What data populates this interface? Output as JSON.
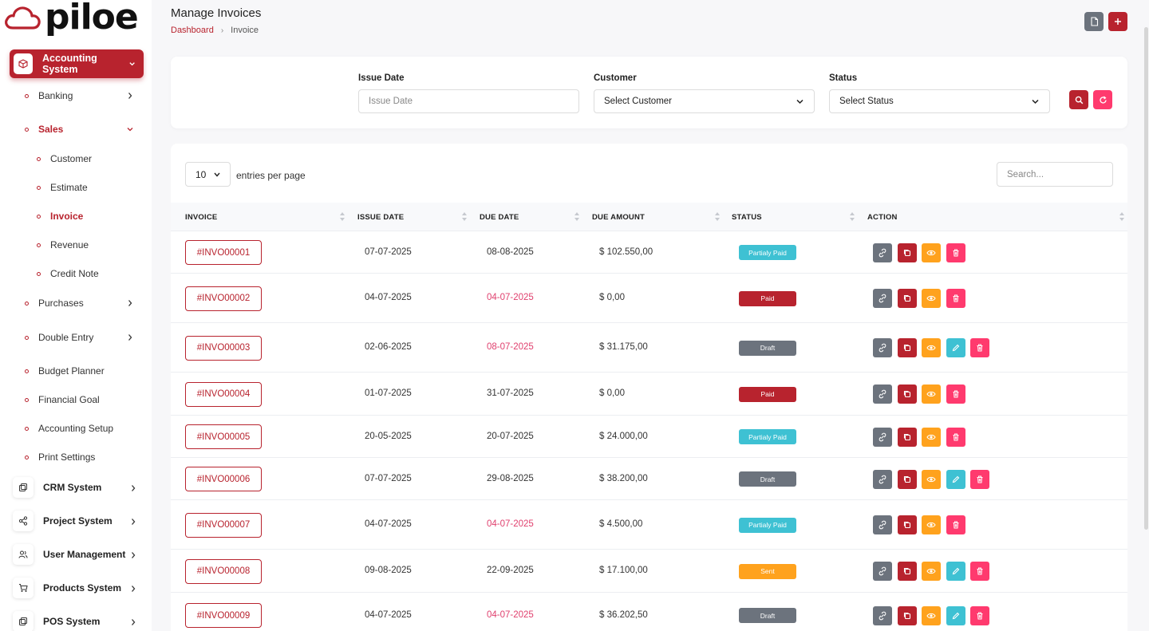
{
  "brand": {
    "name": "piloe",
    "accent": "#b8232e"
  },
  "sidebar": {
    "active_system": "Accounting System",
    "accounting_items": [
      {
        "label": "Banking",
        "expandable": true
      },
      {
        "label": "Sales",
        "expandable": true,
        "expanded": true,
        "active": true
      },
      {
        "label": "Customer",
        "sub": true
      },
      {
        "label": "Estimate",
        "sub": true
      },
      {
        "label": "Invoice",
        "sub": true,
        "active": true
      },
      {
        "label": "Revenue",
        "sub": true
      },
      {
        "label": "Credit Note",
        "sub": true
      },
      {
        "label": "Purchases",
        "expandable": true
      },
      {
        "label": "Double Entry",
        "expandable": true
      },
      {
        "label": "Budget Planner"
      },
      {
        "label": "Financial Goal"
      },
      {
        "label": "Accounting Setup"
      },
      {
        "label": "Print Settings"
      }
    ],
    "systems": [
      {
        "label": "CRM System",
        "icon": "crm-icon"
      },
      {
        "label": "Project System",
        "icon": "share-nodes-icon"
      },
      {
        "label": "User Management",
        "icon": "users-icon"
      },
      {
        "label": "Products System",
        "icon": "cart-icon"
      },
      {
        "label": "POS System",
        "icon": "pos-icon"
      }
    ]
  },
  "header": {
    "title": "Manage Invoices",
    "breadcrumb": {
      "home": "Dashboard",
      "current": "Invoice"
    }
  },
  "filters": {
    "issue_date": {
      "label": "Issue Date",
      "placeholder": "Issue Date"
    },
    "customer": {
      "label": "Customer",
      "value": "Select Customer"
    },
    "status": {
      "label": "Status",
      "value": "Select Status"
    }
  },
  "table": {
    "entries": {
      "value": "10",
      "label": "entries per page"
    },
    "search_placeholder": "Search...",
    "columns": [
      "INVOICE",
      "ISSUE DATE",
      "DUE DATE",
      "DUE AMOUNT",
      "STATUS",
      "ACTION"
    ],
    "rows": [
      {
        "invoice": "#INVO00001",
        "issue": "07-07-2025",
        "due": "08-08-2025",
        "due_late": false,
        "amount": "$ 102.550,00",
        "status": "Partialy Paid",
        "editable": false
      },
      {
        "invoice": "#INVO00002",
        "issue": "04-07-2025",
        "due": "04-07-2025",
        "due_late": true,
        "amount": "$ 0,00",
        "status": "Paid",
        "editable": false
      },
      {
        "invoice": "#INVO00003",
        "issue": "02-06-2025",
        "due": "08-07-2025",
        "due_late": true,
        "amount": "$ 31.175,00",
        "status": "Draft",
        "editable": true
      },
      {
        "invoice": "#INVO00004",
        "issue": "01-07-2025",
        "due": "31-07-2025",
        "due_late": false,
        "amount": "$ 0,00",
        "status": "Paid",
        "editable": false
      },
      {
        "invoice": "#INVO00005",
        "issue": "20-05-2025",
        "due": "20-07-2025",
        "due_late": false,
        "amount": "$ 24.000,00",
        "status": "Partialy Paid",
        "editable": false
      },
      {
        "invoice": "#INVO00006",
        "issue": "07-07-2025",
        "due": "29-08-2025",
        "due_late": false,
        "amount": "$ 38.200,00",
        "status": "Draft",
        "editable": true
      },
      {
        "invoice": "#INVO00007",
        "issue": "04-07-2025",
        "due": "04-07-2025",
        "due_late": true,
        "amount": "$ 4.500,00",
        "status": "Partialy Paid",
        "editable": false
      },
      {
        "invoice": "#INVO00008",
        "issue": "09-08-2025",
        "due": "22-09-2025",
        "due_late": false,
        "amount": "$ 17.100,00",
        "status": "Sent",
        "editable": true
      },
      {
        "invoice": "#INVO00009",
        "issue": "04-07-2025",
        "due": "04-07-2025",
        "due_late": true,
        "amount": "$ 36.202,50",
        "status": "Draft",
        "editable": true
      }
    ]
  },
  "status_colors": {
    "Partialy Paid": "#3ec1d3",
    "Paid": "#b8232e",
    "Draft": "#6c737d",
    "Sent": "#ffa21d"
  },
  "action_icons": [
    "link-icon",
    "copy-icon",
    "eye-icon",
    "pencil-icon",
    "trash-icon"
  ]
}
